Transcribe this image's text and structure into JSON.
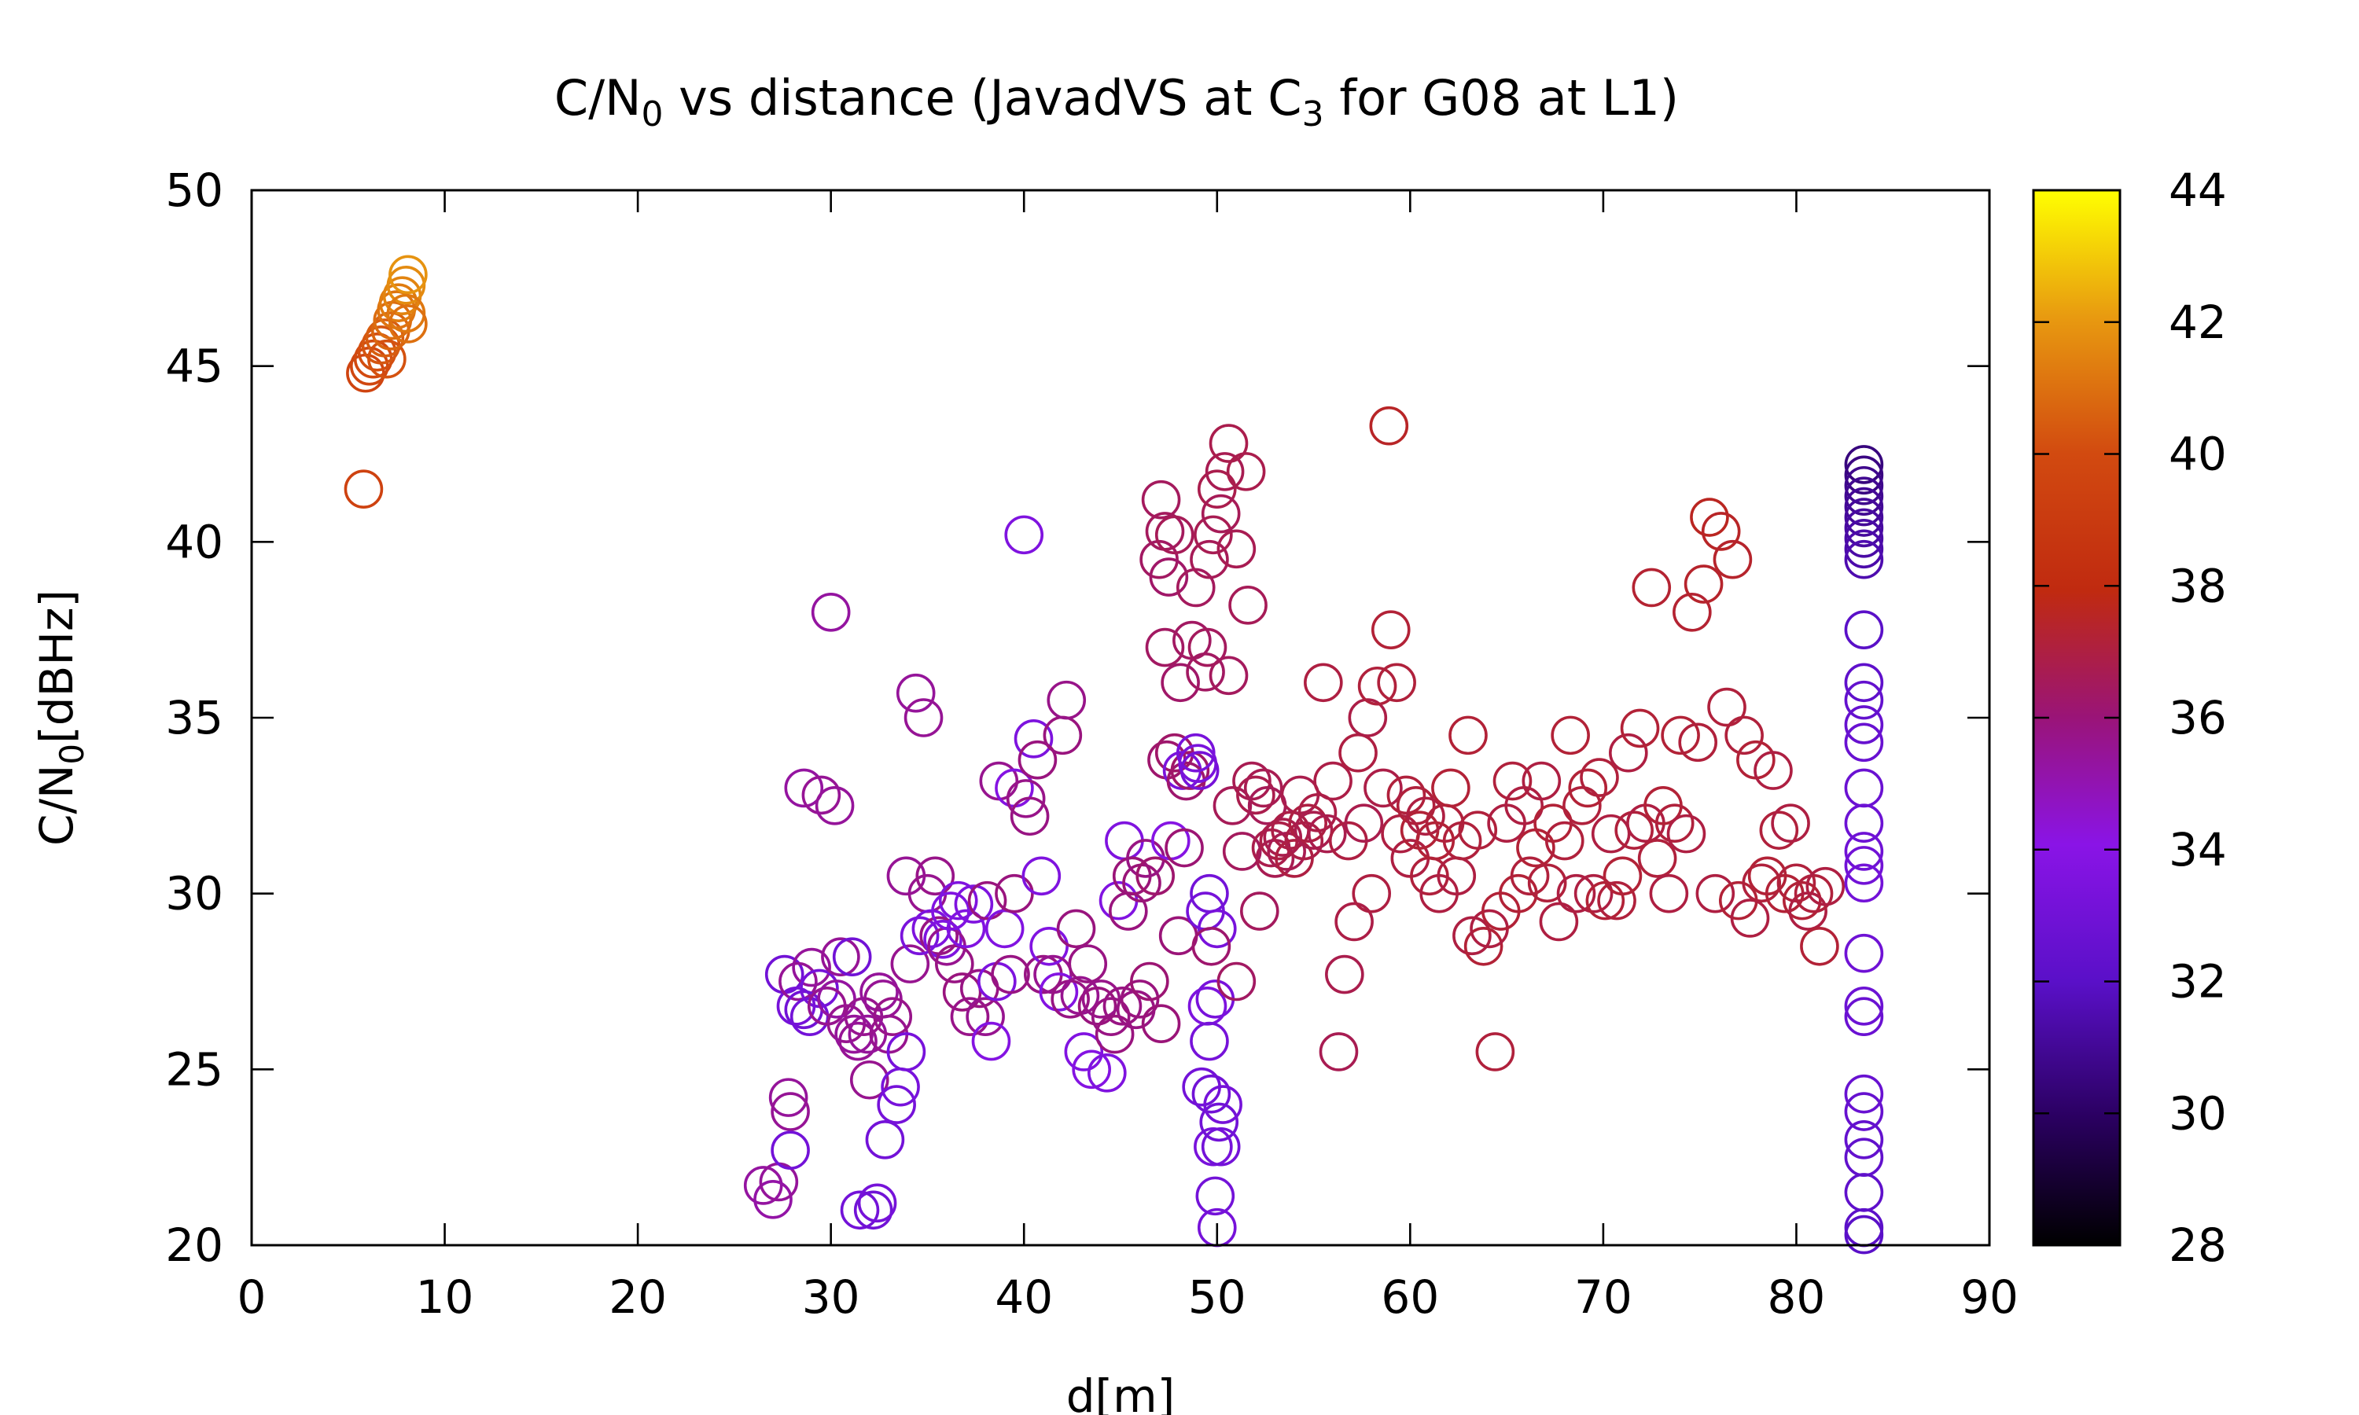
{
  "chart_data": {
    "type": "scatter",
    "title": {
      "pre": "C/N",
      "sub": "0",
      "mid": " vs distance (JavadVS at C",
      "sub2": "3",
      "post": " for G08 at L1)"
    },
    "xlabel": "d[m]",
    "ylabel": {
      "pre": "C/N",
      "sub": "0",
      "post": "[dBHz]"
    },
    "xlim": [
      0,
      90
    ],
    "ylim": [
      20,
      50
    ],
    "xticks": [
      "0",
      "10",
      "20",
      "30",
      "40",
      "50",
      "60",
      "70",
      "80",
      "90"
    ],
    "yticks": [
      "20",
      "25",
      "30",
      "35",
      "40",
      "45",
      "50"
    ],
    "colorbar": {
      "range": [
        28,
        44
      ],
      "ticks": [
        "28",
        "30",
        "32",
        "34",
        "36",
        "38",
        "40",
        "42",
        "44"
      ],
      "palette": "gnuplot black-blue-purple-red-orange-yellow"
    },
    "marker": "open-circle",
    "grid": false,
    "legend": "none",
    "points": [
      [
        5.8,
        41.5,
        39.5
      ],
      [
        5.9,
        44.8,
        39.6
      ],
      [
        6.1,
        45.0,
        39.8
      ],
      [
        6.3,
        45.2,
        40.0
      ],
      [
        6.5,
        45.4,
        40.1
      ],
      [
        6.7,
        45.6,
        40.3
      ],
      [
        6.9,
        45.8,
        40.5
      ],
      [
        7.0,
        45.2,
        40.2
      ],
      [
        7.2,
        46.0,
        40.7
      ],
      [
        7.3,
        46.3,
        40.9
      ],
      [
        7.5,
        46.6,
        41.1
      ],
      [
        7.6,
        46.8,
        41.3
      ],
      [
        7.8,
        47.0,
        41.5
      ],
      [
        8.0,
        47.3,
        41.7
      ],
      [
        8.1,
        47.6,
        41.9
      ],
      [
        8.0,
        46.5,
        41.2
      ],
      [
        8.1,
        46.2,
        41.0
      ],
      [
        26.5,
        21.7,
        35.3
      ],
      [
        27.0,
        21.3,
        35.2
      ],
      [
        27.3,
        21.8,
        35.4
      ],
      [
        27.6,
        27.7,
        33.0
      ],
      [
        27.8,
        24.2,
        35.4
      ],
      [
        27.9,
        23.8,
        35.5
      ],
      [
        27.9,
        22.7,
        33.1
      ],
      [
        28.2,
        26.8,
        33.2
      ],
      [
        28.3,
        27.5,
        35.5
      ],
      [
        28.6,
        26.7,
        33.0
      ],
      [
        28.6,
        33.0,
        35.3
      ],
      [
        28.9,
        26.5,
        33.1
      ],
      [
        29.0,
        27.9,
        35.4
      ],
      [
        29.4,
        27.3,
        33.2
      ],
      [
        29.5,
        32.8,
        35.5
      ],
      [
        29.8,
        26.8,
        35.6
      ],
      [
        30.0,
        38.0,
        35.3
      ],
      [
        30.2,
        32.5,
        35.4
      ],
      [
        30.3,
        27.0,
        35.3
      ],
      [
        30.5,
        28.2,
        35.5
      ],
      [
        30.8,
        26.3,
        35.6
      ],
      [
        31.1,
        28.2,
        33.0
      ],
      [
        31.2,
        26.0,
        35.4
      ],
      [
        31.4,
        25.8,
        35.5
      ],
      [
        31.5,
        21.0,
        33.1
      ],
      [
        31.7,
        26.5,
        35.6
      ],
      [
        31.9,
        26.0,
        35.4
      ],
      [
        32.0,
        24.7,
        35.6
      ],
      [
        32.2,
        21.0,
        33.0
      ],
      [
        32.4,
        21.2,
        33.2
      ],
      [
        32.5,
        27.2,
        35.4
      ],
      [
        32.7,
        27.0,
        35.5
      ],
      [
        32.8,
        23.0,
        33.1
      ],
      [
        33.0,
        26.0,
        35.6
      ],
      [
        33.2,
        26.5,
        35.7
      ],
      [
        33.4,
        24.0,
        33.2
      ],
      [
        33.6,
        24.5,
        33.3
      ],
      [
        33.9,
        25.5,
        33.3
      ],
      [
        33.9,
        30.5,
        35.5
      ],
      [
        34.1,
        28.0,
        35.6
      ],
      [
        34.4,
        35.7,
        35.4
      ],
      [
        34.6,
        28.8,
        33.4
      ],
      [
        34.8,
        35.0,
        35.5
      ],
      [
        35.0,
        30.0,
        35.6
      ],
      [
        35.2,
        29.0,
        33.5
      ],
      [
        35.4,
        30.5,
        35.7
      ],
      [
        35.6,
        28.8,
        35.8
      ],
      [
        35.8,
        28.7,
        33.6
      ],
      [
        36.0,
        28.5,
        35.6
      ],
      [
        36.2,
        29.5,
        33.7
      ],
      [
        36.4,
        28.0,
        35.8
      ],
      [
        36.6,
        29.8,
        33.6
      ],
      [
        36.8,
        27.2,
        35.9
      ],
      [
        37.0,
        29.0,
        33.7
      ],
      [
        37.2,
        26.5,
        35.7
      ],
      [
        37.4,
        29.7,
        33.6
      ],
      [
        37.7,
        27.3,
        35.8
      ],
      [
        38.0,
        26.5,
        35.6
      ],
      [
        38.1,
        29.8,
        35.9
      ],
      [
        38.3,
        25.8,
        33.8
      ],
      [
        38.6,
        27.5,
        33.5
      ],
      [
        38.7,
        33.2,
        35.6
      ],
      [
        39.0,
        29.0,
        33.7
      ],
      [
        39.3,
        27.7,
        35.8
      ],
      [
        39.5,
        30.0,
        35.9
      ],
      [
        39.5,
        33.0,
        33.8
      ],
      [
        40.0,
        40.2,
        33.6
      ],
      [
        40.1,
        32.7,
        35.7
      ],
      [
        40.3,
        32.2,
        35.8
      ],
      [
        40.5,
        34.4,
        33.5
      ],
      [
        40.7,
        33.8,
        35.9
      ],
      [
        40.9,
        30.5,
        33.6
      ],
      [
        41.0,
        27.7,
        35.8
      ],
      [
        41.3,
        28.5,
        33.7
      ],
      [
        41.5,
        27.7,
        35.6
      ],
      [
        41.8,
        27.2,
        33.8
      ],
      [
        42.0,
        34.5,
        35.9
      ],
      [
        42.2,
        35.5,
        35.7
      ],
      [
        42.4,
        27.0,
        35.8
      ],
      [
        42.7,
        29.0,
        35.9
      ],
      [
        42.9,
        27.1,
        35.6
      ],
      [
        43.1,
        25.5,
        33.7
      ],
      [
        43.3,
        28.0,
        35.8
      ],
      [
        43.5,
        25.0,
        33.8
      ],
      [
        43.8,
        26.8,
        35.9
      ],
      [
        44.0,
        27.0,
        35.7
      ],
      [
        44.3,
        24.9,
        33.6
      ],
      [
        44.5,
        26.5,
        35.8
      ],
      [
        44.7,
        26.0,
        35.9
      ],
      [
        44.9,
        29.8,
        33.7
      ],
      [
        45.1,
        26.8,
        35.8
      ],
      [
        45.2,
        31.5,
        33.6
      ],
      [
        45.4,
        29.5,
        35.9
      ],
      [
        45.6,
        30.5,
        36.0
      ],
      [
        45.8,
        26.7,
        35.8
      ],
      [
        46.0,
        27.0,
        35.9
      ],
      [
        46.1,
        30.3,
        36.0
      ],
      [
        46.3,
        31.0,
        35.8
      ],
      [
        46.5,
        27.5,
        36.1
      ],
      [
        46.8,
        30.5,
        36.2
      ],
      [
        47.0,
        39.5,
        36.4
      ],
      [
        47.1,
        41.2,
        36.5
      ],
      [
        47.1,
        26.3,
        36.0
      ],
      [
        47.3,
        40.3,
        36.5
      ],
      [
        47.3,
        37.0,
        36.4
      ],
      [
        47.4,
        33.8,
        36.2
      ],
      [
        47.5,
        39.0,
        36.3
      ],
      [
        47.6,
        31.5,
        33.9
      ],
      [
        47.8,
        40.2,
        36.6
      ],
      [
        47.8,
        34.0,
        36.3
      ],
      [
        48.0,
        28.8,
        36.0
      ],
      [
        48.1,
        36.0,
        36.3
      ],
      [
        48.2,
        33.5,
        33.4
      ],
      [
        48.3,
        31.3,
        36.1
      ],
      [
        48.4,
        33.2,
        36.2
      ],
      [
        48.6,
        33.5,
        36.3
      ],
      [
        48.7,
        37.2,
        36.4
      ],
      [
        48.9,
        38.7,
        36.5
      ],
      [
        48.9,
        34.0,
        33.3
      ],
      [
        49.0,
        33.7,
        33.4
      ],
      [
        49.1,
        33.5,
        33.2
      ],
      [
        49.2,
        24.5,
        33.1
      ],
      [
        49.4,
        29.5,
        33.2
      ],
      [
        49.5,
        26.8,
        33.5
      ],
      [
        49.6,
        30.0,
        33.1
      ],
      [
        49.6,
        25.8,
        33.2
      ],
      [
        49.7,
        24.3,
        33.0
      ],
      [
        49.8,
        22.8,
        33.3
      ],
      [
        49.9,
        21.4,
        33.1
      ],
      [
        50.0,
        20.5,
        33.2
      ],
      [
        50.0,
        29.0,
        33.3
      ],
      [
        50.1,
        23.5,
        33.0
      ],
      [
        50.2,
        22.8,
        33.1
      ],
      [
        50.3,
        24.0,
        33.2
      ],
      [
        49.9,
        27.0,
        33.3
      ],
      [
        49.7,
        28.5,
        36.2
      ],
      [
        49.5,
        37.0,
        36.5
      ],
      [
        49.4,
        36.3,
        36.4
      ],
      [
        49.6,
        39.5,
        36.6
      ],
      [
        49.8,
        40.2,
        36.7
      ],
      [
        50.0,
        41.5,
        36.8
      ],
      [
        50.2,
        40.8,
        36.6
      ],
      [
        50.4,
        42.0,
        36.7
      ],
      [
        50.6,
        42.8,
        36.8
      ],
      [
        50.6,
        36.2,
        36.5
      ],
      [
        50.8,
        32.5,
        36.6
      ],
      [
        51.0,
        27.5,
        36.4
      ],
      [
        51.0,
        39.8,
        36.7
      ],
      [
        51.3,
        31.2,
        36.5
      ],
      [
        51.5,
        42.0,
        36.8
      ],
      [
        51.6,
        38.2,
        36.6
      ],
      [
        51.8,
        33.2,
        36.7
      ],
      [
        52.0,
        32.8,
        36.8
      ],
      [
        52.2,
        29.5,
        36.5
      ],
      [
        52.4,
        33.0,
        36.7
      ],
      [
        52.6,
        32.5,
        36.6
      ],
      [
        52.8,
        31.3,
        36.8
      ],
      [
        53.0,
        31.0,
        36.7
      ],
      [
        53.2,
        31.5,
        36.9
      ],
      [
        53.4,
        31.6,
        36.8
      ],
      [
        53.6,
        31.2,
        36.7
      ],
      [
        53.8,
        31.8,
        36.9
      ],
      [
        54.0,
        31.0,
        37.0
      ],
      [
        54.3,
        32.8,
        36.8
      ],
      [
        54.5,
        31.5,
        36.9
      ],
      [
        54.7,
        32.0,
        37.0
      ],
      [
        55.0,
        31.8,
        36.8
      ],
      [
        55.2,
        32.3,
        36.9
      ],
      [
        55.5,
        36.0,
        37.0
      ],
      [
        55.7,
        31.7,
        36.8
      ],
      [
        56.0,
        33.2,
        36.9
      ],
      [
        56.3,
        25.5,
        36.7
      ],
      [
        56.6,
        27.7,
        36.8
      ],
      [
        56.8,
        31.5,
        37.0
      ],
      [
        57.1,
        29.2,
        36.9
      ],
      [
        57.3,
        34.0,
        37.0
      ],
      [
        57.6,
        32.0,
        36.8
      ],
      [
        57.8,
        35.0,
        36.9
      ],
      [
        58.0,
        30.0,
        37.0
      ],
      [
        58.3,
        35.9,
        37.1
      ],
      [
        58.6,
        33.0,
        36.9
      ],
      [
        58.9,
        43.3,
        37.5
      ],
      [
        59.0,
        37.5,
        37.2
      ],
      [
        59.3,
        36.0,
        37.1
      ],
      [
        59.5,
        31.7,
        37.0
      ],
      [
        59.8,
        32.8,
        37.1
      ],
      [
        60.0,
        31.0,
        37.0
      ],
      [
        60.3,
        32.5,
        37.1
      ],
      [
        60.5,
        31.8,
        37.2
      ],
      [
        60.8,
        32.2,
        37.0
      ],
      [
        61.0,
        30.5,
        37.1
      ],
      [
        61.3,
        31.5,
        37.2
      ],
      [
        61.5,
        30.0,
        37.0
      ],
      [
        61.8,
        32.0,
        37.1
      ],
      [
        62.1,
        33.0,
        37.2
      ],
      [
        62.4,
        30.5,
        37.0
      ],
      [
        62.7,
        31.5,
        37.1
      ],
      [
        63.0,
        34.5,
        37.2
      ],
      [
        63.2,
        28.8,
        37.0
      ],
      [
        63.5,
        31.8,
        37.1
      ],
      [
        63.8,
        28.5,
        37.2
      ],
      [
        64.1,
        29.0,
        37.0
      ],
      [
        64.4,
        25.5,
        37.1
      ],
      [
        64.7,
        29.5,
        37.2
      ],
      [
        65.0,
        32.0,
        37.0
      ],
      [
        65.3,
        33.2,
        37.1
      ],
      [
        65.6,
        30.0,
        37.2
      ],
      [
        65.9,
        32.5,
        37.0
      ],
      [
        66.2,
        30.5,
        37.1
      ],
      [
        66.5,
        31.3,
        37.2
      ],
      [
        66.8,
        33.2,
        37.0
      ],
      [
        67.1,
        30.3,
        37.1
      ],
      [
        67.4,
        32.0,
        37.2
      ],
      [
        67.7,
        29.2,
        37.0
      ],
      [
        68.0,
        31.5,
        37.1
      ],
      [
        68.3,
        34.5,
        37.2
      ],
      [
        68.6,
        30.0,
        37.0
      ],
      [
        68.9,
        32.5,
        37.1
      ],
      [
        69.2,
        33.0,
        37.2
      ],
      [
        69.5,
        30.0,
        37.0
      ],
      [
        69.8,
        33.3,
        37.1
      ],
      [
        70.1,
        29.8,
        37.2
      ],
      [
        70.4,
        31.7,
        37.0
      ],
      [
        70.7,
        29.8,
        37.1
      ],
      [
        71.0,
        30.5,
        37.2
      ],
      [
        71.3,
        34.0,
        37.0
      ],
      [
        71.6,
        31.8,
        37.1
      ],
      [
        71.9,
        34.7,
        37.2
      ],
      [
        72.2,
        32.0,
        37.0
      ],
      [
        72.5,
        38.7,
        37.3
      ],
      [
        72.8,
        31.0,
        37.1
      ],
      [
        73.1,
        32.5,
        37.2
      ],
      [
        73.4,
        30.0,
        37.0
      ],
      [
        73.7,
        32.0,
        37.1
      ],
      [
        74.0,
        34.5,
        37.2
      ],
      [
        74.3,
        31.7,
        37.0
      ],
      [
        74.6,
        38.0,
        37.3
      ],
      [
        74.9,
        34.3,
        37.1
      ],
      [
        75.2,
        38.8,
        37.4
      ],
      [
        75.5,
        40.7,
        37.6
      ],
      [
        75.8,
        30.0,
        37.0
      ],
      [
        76.1,
        40.3,
        37.5
      ],
      [
        76.4,
        35.3,
        37.1
      ],
      [
        76.7,
        39.5,
        37.4
      ],
      [
        77.0,
        29.8,
        37.2
      ],
      [
        77.3,
        34.5,
        37.1
      ],
      [
        77.6,
        29.3,
        37.0
      ],
      [
        77.9,
        33.8,
        37.2
      ],
      [
        78.2,
        30.3,
        37.1
      ],
      [
        78.5,
        30.5,
        37.2
      ],
      [
        78.8,
        33.5,
        37.0
      ],
      [
        79.1,
        31.8,
        37.1
      ],
      [
        79.4,
        30.0,
        37.2
      ],
      [
        79.7,
        32.0,
        37.0
      ],
      [
        80.0,
        30.3,
        37.1
      ],
      [
        80.3,
        29.8,
        37.2
      ],
      [
        80.6,
        29.5,
        37.0
      ],
      [
        80.9,
        30.0,
        37.1
      ],
      [
        81.2,
        28.5,
        37.2
      ],
      [
        81.5,
        30.2,
        37.0
      ],
      [
        83.5,
        42.2,
        30.5
      ],
      [
        83.5,
        41.9,
        30.6
      ],
      [
        83.5,
        41.6,
        30.8
      ],
      [
        83.5,
        41.3,
        30.9
      ],
      [
        83.5,
        41.0,
        31.0
      ],
      [
        83.5,
        40.7,
        31.1
      ],
      [
        83.5,
        40.4,
        31.2
      ],
      [
        83.5,
        40.1,
        31.3
      ],
      [
        83.5,
        39.8,
        31.4
      ],
      [
        83.5,
        39.5,
        31.5
      ],
      [
        83.5,
        37.5,
        32.0
      ],
      [
        83.5,
        36.0,
        32.2
      ],
      [
        83.5,
        35.5,
        32.4
      ],
      [
        83.5,
        34.8,
        32.5
      ],
      [
        83.5,
        34.3,
        32.6
      ],
      [
        83.5,
        33.0,
        32.7
      ],
      [
        83.5,
        32.0,
        32.8
      ],
      [
        83.5,
        31.2,
        32.9
      ],
      [
        83.5,
        30.8,
        33.0
      ],
      [
        83.5,
        30.3,
        33.1
      ],
      [
        83.5,
        28.3,
        32.9
      ],
      [
        83.5,
        26.8,
        32.8
      ],
      [
        83.5,
        26.5,
        32.7
      ],
      [
        83.5,
        24.3,
        32.6
      ],
      [
        83.5,
        23.8,
        32.5
      ],
      [
        83.5,
        23.0,
        32.4
      ],
      [
        83.5,
        22.5,
        32.3
      ],
      [
        83.5,
        21.5,
        32.2
      ],
      [
        83.5,
        20.5,
        32.1
      ],
      [
        83.5,
        20.3,
        32.0
      ]
    ]
  }
}
